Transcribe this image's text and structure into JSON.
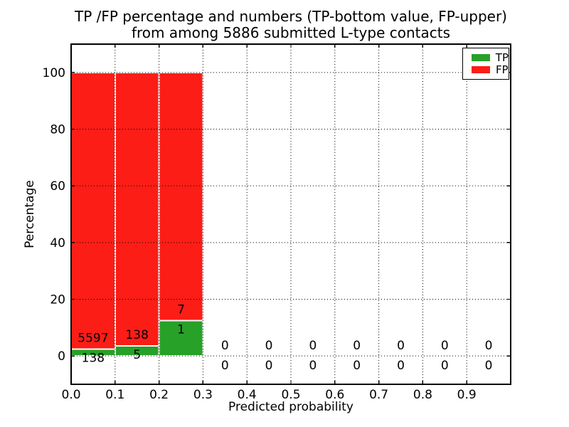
{
  "figure": {
    "title_line1": "TP /FP percentage and numbers (TP-bottom value, FP-upper)",
    "title_line2": "from among 5886 submitted L-type contacts"
  },
  "chart_data": {
    "type": "bar",
    "stacked": true,
    "title": "TP /FP percentage and numbers (TP-bottom value, FP-upper) from among 5886 submitted L-type contacts",
    "xlabel": "Predicted probability",
    "ylabel": "Percentage",
    "xlim": [
      0.0,
      1.0
    ],
    "ylim": [
      -10,
      110
    ],
    "x_ticks": [
      0.0,
      0.1,
      0.2,
      0.3,
      0.4,
      0.5,
      0.6,
      0.7,
      0.8,
      0.9
    ],
    "x_tick_labels": [
      "0.0",
      "0.1",
      "0.2",
      "0.3",
      "0.4",
      "0.5",
      "0.6",
      "0.7",
      "0.8",
      "0.9"
    ],
    "y_ticks": [
      0,
      20,
      40,
      60,
      80,
      100
    ],
    "y_tick_labels": [
      "0",
      "20",
      "40",
      "60",
      "80",
      "100"
    ],
    "grid": "dotted",
    "total_submitted": 5886,
    "bins": [
      {
        "x_start": 0.0,
        "x_end": 0.1,
        "tp_count": 138,
        "fp_count": 5597,
        "tp_pct": 2.406,
        "fp_pct": 97.594
      },
      {
        "x_start": 0.1,
        "x_end": 0.2,
        "tp_count": 5,
        "fp_count": 138,
        "tp_pct": 3.497,
        "fp_pct": 96.503
      },
      {
        "x_start": 0.2,
        "x_end": 0.3,
        "tp_count": 1,
        "fp_count": 7,
        "tp_pct": 12.5,
        "fp_pct": 87.5
      },
      {
        "x_start": 0.3,
        "x_end": 0.4,
        "tp_count": 0,
        "fp_count": 0,
        "tp_pct": 0,
        "fp_pct": 0
      },
      {
        "x_start": 0.4,
        "x_end": 0.5,
        "tp_count": 0,
        "fp_count": 0,
        "tp_pct": 0,
        "fp_pct": 0
      },
      {
        "x_start": 0.5,
        "x_end": 0.6,
        "tp_count": 0,
        "fp_count": 0,
        "tp_pct": 0,
        "fp_pct": 0
      },
      {
        "x_start": 0.6,
        "x_end": 0.7,
        "tp_count": 0,
        "fp_count": 0,
        "tp_pct": 0,
        "fp_pct": 0
      },
      {
        "x_start": 0.7,
        "x_end": 0.8,
        "tp_count": 0,
        "fp_count": 0,
        "tp_pct": 0,
        "fp_pct": 0
      },
      {
        "x_start": 0.8,
        "x_end": 0.9,
        "tp_count": 0,
        "fp_count": 0,
        "tp_pct": 0,
        "fp_pct": 0
      },
      {
        "x_start": 0.9,
        "x_end": 1.0,
        "tp_count": 0,
        "fp_count": 0,
        "tp_pct": 0,
        "fp_pct": 0
      }
    ],
    "legend": {
      "position": "upper right",
      "entries": [
        {
          "label": "TP",
          "color": "#27a127"
        },
        {
          "label": "FP",
          "color": "#fc1d17"
        }
      ]
    }
  },
  "colors": {
    "tp": "#27a127",
    "fp": "#fc1d17",
    "text": "#000000",
    "grid": "#000000",
    "bar_edge": "#ffffff",
    "background": "#ffffff"
  }
}
